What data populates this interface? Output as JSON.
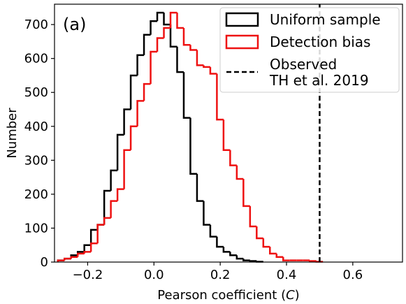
{
  "chart_data": {
    "type": "histogram",
    "panel_label": "(a)",
    "xlabel_prefix": "Pearson coefficient (",
    "xlabel_var": "C",
    "xlabel_suffix": ")",
    "ylabel": "Number",
    "xlim": [
      -0.3,
      0.75
    ],
    "ylim": [
      0,
      760
    ],
    "bin_width": 0.02,
    "x_ticks": [
      -0.2,
      0.0,
      0.2,
      0.4,
      0.6
    ],
    "x_tick_labels": [
      "−0.2",
      "0.0",
      "0.2",
      "0.4",
      "0.6"
    ],
    "y_ticks": [
      0,
      100,
      200,
      300,
      400,
      500,
      600,
      700
    ],
    "y_tick_labels": [
      "0",
      "100",
      "200",
      "300",
      "400",
      "500",
      "600",
      "700"
    ],
    "grid": false,
    "legend_position": "top-right",
    "series": [
      {
        "name": "Uniform sample",
        "color": "#000000",
        "style": "step",
        "bin_starts": [
          -0.29,
          -0.27,
          -0.25,
          -0.23,
          -0.21,
          -0.19,
          -0.17,
          -0.15,
          -0.13,
          -0.11,
          -0.09,
          -0.07,
          -0.05,
          -0.03,
          -0.01,
          0.01,
          0.03,
          0.05,
          0.07,
          0.09,
          0.11,
          0.13,
          0.15,
          0.17,
          0.19,
          0.21,
          0.23,
          0.25,
          0.27,
          0.29,
          0.31
        ],
        "values": [
          5,
          10,
          20,
          30,
          50,
          95,
          110,
          210,
          270,
          375,
          450,
          550,
          610,
          670,
          710,
          735,
          700,
          635,
          560,
          425,
          260,
          180,
          110,
          75,
          45,
          30,
          20,
          10,
          5,
          3,
          1
        ]
      },
      {
        "name": "Detection bias",
        "color": "#ee1111",
        "style": "step",
        "bin_starts": [
          -0.29,
          -0.27,
          -0.25,
          -0.23,
          -0.21,
          -0.19,
          -0.17,
          -0.15,
          -0.13,
          -0.11,
          -0.09,
          -0.07,
          -0.05,
          -0.03,
          -0.01,
          0.01,
          0.03,
          0.05,
          0.07,
          0.09,
          0.11,
          0.13,
          0.15,
          0.17,
          0.19,
          0.21,
          0.23,
          0.25,
          0.27,
          0.29,
          0.31,
          0.33,
          0.35,
          0.37,
          0.39,
          0.41,
          0.43,
          0.45,
          0.47,
          0.49
        ],
        "values": [
          5,
          10,
          15,
          25,
          30,
          55,
          110,
          130,
          180,
          215,
          330,
          400,
          475,
          525,
          620,
          660,
          690,
          735,
          690,
          640,
          625,
          580,
          575,
          555,
          420,
          330,
          285,
          245,
          165,
          105,
          70,
          45,
          25,
          15,
          5,
          5,
          5,
          5,
          3,
          1
        ]
      },
      {
        "name": "Observed TH et al. 2019",
        "legend_lines": [
          "Observed",
          "TH et al. 2019"
        ],
        "color": "#000000",
        "style": "dashed-vline",
        "x": 0.5
      }
    ]
  }
}
